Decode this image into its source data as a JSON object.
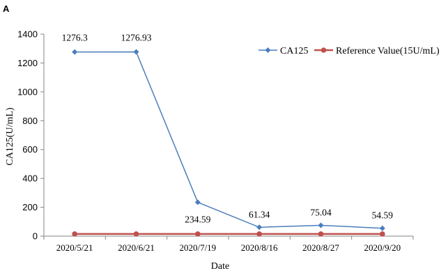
{
  "panel_label": "A",
  "chart_data": {
    "type": "line",
    "categories": [
      "2020/5/21",
      "2020/6/21",
      "2020/7/19",
      "2020/8/16",
      "2020/8/27",
      "2020/9/20"
    ],
    "series": [
      {
        "name": "CA125",
        "values": [
          1276.3,
          1276.93,
          234.59,
          61.34,
          75.04,
          54.59
        ],
        "labels": [
          "1276.3",
          "1276.93",
          "234.59",
          "61.34",
          "75.04",
          "54.59"
        ],
        "color": "#4a7ebb",
        "marker": "diamond"
      },
      {
        "name": "Reference Value(15U/mL)",
        "values": [
          15,
          15,
          15,
          15,
          15,
          15
        ],
        "color": "#c0504d",
        "marker": "circle"
      }
    ],
    "xlabel": "Date",
    "ylabel": "CA125(U/mL)",
    "ylim": [
      0,
      1400
    ],
    "yticks": [
      0,
      200,
      400,
      600,
      800,
      1000,
      1200,
      1400
    ],
    "grid": false,
    "legend": "top-right"
  }
}
